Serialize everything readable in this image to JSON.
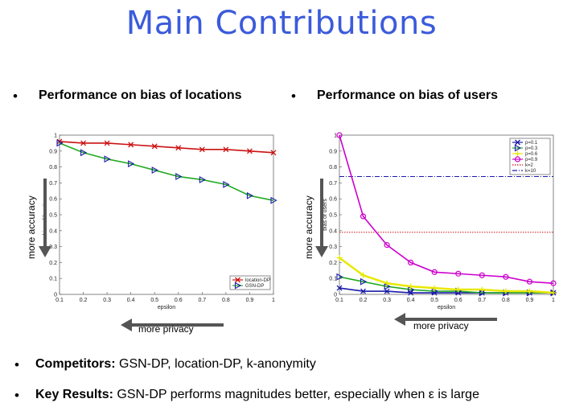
{
  "title": "Main Contributions",
  "bullets_top": [
    {
      "text": "Performance on bias of locations"
    },
    {
      "text": "Performance on bias of users"
    }
  ],
  "arrows": {
    "left_accuracy": "more accuracy",
    "left_privacy": "more privacy",
    "right_accuracy": "more accuracy",
    "right_privacy": "more privacy"
  },
  "bottom": {
    "competitors_label": "Competitors:",
    "competitors_text": " GSN-DP, location-DP, k-anonymity",
    "results_label": "Key Results:",
    "results_text": " GSN-DP performs magnitudes better, especially when ε is large"
  },
  "colors": {
    "title": "#3b5bdb",
    "red": "#cc1111",
    "green": "#22aa22",
    "blue": "#1a1aaa",
    "yellow": "#e8e800",
    "magenta": "#cc00cc"
  },
  "chart_data": [
    {
      "type": "line",
      "xlabel": "epsilon",
      "ylabel": "bias of locations",
      "xlim": [
        0.1,
        1
      ],
      "ylim": [
        0,
        1
      ],
      "x": [
        0.1,
        0.2,
        0.3,
        0.4,
        0.5,
        0.6,
        0.7,
        0.8,
        0.9,
        1
      ],
      "xticks": [
        "0.1",
        "0.2",
        "0.3",
        "0.4",
        "0.5",
        "0.6",
        "0.7",
        "0.8",
        "0.9",
        "1"
      ],
      "yticks": [
        "0",
        "0.1",
        "0.2",
        "0.3",
        "0.4",
        "0.5",
        "0.6",
        "0.7",
        "0.8",
        "0.9",
        "1"
      ],
      "legend_position": "bottom-right",
      "series": [
        {
          "name": "location-DP",
          "color": "#cc1111",
          "marker": "x",
          "values": [
            0.96,
            0.95,
            0.95,
            0.94,
            0.93,
            0.92,
            0.91,
            0.91,
            0.9,
            0.89
          ]
        },
        {
          "name": "GSN-DP",
          "color": "#22aa22",
          "marker": "triangle-right",
          "values": [
            0.95,
            0.89,
            0.85,
            0.82,
            0.78,
            0.74,
            0.72,
            0.69,
            0.62,
            0.59
          ]
        }
      ]
    },
    {
      "type": "line",
      "xlabel": "epsilon",
      "ylabel": "bias of users",
      "xlim": [
        0.1,
        1
      ],
      "ylim": [
        0,
        1
      ],
      "x": [
        0.1,
        0.2,
        0.3,
        0.4,
        0.5,
        0.6,
        0.7,
        0.8,
        0.9,
        1
      ],
      "xticks": [
        "0.1",
        "0.2",
        "0.3",
        "0.4",
        "0.5",
        "0.6",
        "0.7",
        "0.8",
        "0.9",
        "1"
      ],
      "yticks": [
        "0",
        "0.1",
        "0.2",
        "0.3",
        "0.4",
        "0.5",
        "0.6",
        "0.7",
        "0.8",
        "0.9",
        "1"
      ],
      "legend_position": "top-right",
      "series": [
        {
          "name": "p=0.1",
          "color": "#1a1aaa",
          "marker": "x",
          "values": [
            0.04,
            0.02,
            0.02,
            0.01,
            0.01,
            0.01,
            0.01,
            0.01,
            0.01,
            0.01
          ]
        },
        {
          "name": "p=0.3",
          "color": "#22aa22",
          "marker": "triangle-right",
          "values": [
            0.11,
            0.08,
            0.05,
            0.03,
            0.02,
            0.02,
            0.01,
            0.01,
            0.01,
            0.01
          ]
        },
        {
          "name": "p=0.6",
          "color": "#e8e800",
          "marker": "plus",
          "values": [
            0.23,
            0.12,
            0.07,
            0.05,
            0.04,
            0.03,
            0.03,
            0.02,
            0.02,
            0.01
          ]
        },
        {
          "name": "p=0.9",
          "color": "#cc00cc",
          "marker": "circle",
          "values": [
            1.0,
            0.49,
            0.31,
            0.2,
            0.14,
            0.13,
            0.12,
            0.11,
            0.08,
            0.07
          ]
        }
      ],
      "reference_lines": [
        {
          "name": "k=2",
          "color": "#cc1111",
          "style": "dotted",
          "value": 0.39
        },
        {
          "name": "k=10",
          "color": "#1a1aaa",
          "style": "dash-dot",
          "value": 0.74
        }
      ]
    }
  ]
}
